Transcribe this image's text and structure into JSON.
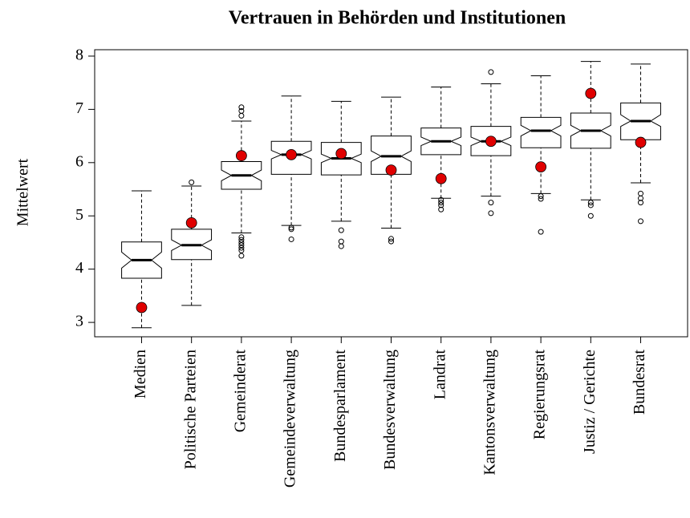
{
  "chart_data": {
    "type": "boxplot",
    "title": "Vertrauen in Behörden und Institutionen",
    "y_label": "Mittelwert",
    "categories": [
      "Medien",
      "Politische Parteien",
      "Gemeinderat",
      "Gemeindeverwaltung",
      "Bundesparlament",
      "Bundesverwaltung",
      "Landrat",
      "Kantonsverwaltung",
      "Regierungsrat",
      "Justiz / Gerichte",
      "Bundesrat"
    ],
    "boxes": [
      {
        "whisker_low": 2.9,
        "q1": 3.83,
        "median": 4.17,
        "q3": 4.51,
        "whisker_high": 5.47,
        "notch_low": 4.02,
        "notch_high": 4.32,
        "outliers": []
      },
      {
        "whisker_low": 3.32,
        "q1": 4.18,
        "median": 4.45,
        "q3": 4.75,
        "whisker_high": 5.56,
        "notch_low": 4.35,
        "notch_high": 4.55,
        "outliers": [
          5.63
        ]
      },
      {
        "whisker_low": 4.68,
        "q1": 5.5,
        "median": 5.76,
        "q3": 6.02,
        "whisker_high": 6.78,
        "notch_low": 5.66,
        "notch_high": 5.86,
        "outliers": [
          4.6,
          4.55,
          4.5,
          4.45,
          4.4,
          4.35,
          4.25,
          6.88,
          6.97,
          7.04
        ]
      },
      {
        "whisker_low": 4.82,
        "q1": 5.78,
        "median": 6.15,
        "q3": 6.4,
        "whisker_high": 7.25,
        "notch_low": 6.07,
        "notch_high": 6.23,
        "outliers": [
          4.78,
          4.75,
          4.56
        ]
      },
      {
        "whisker_low": 4.9,
        "q1": 5.77,
        "median": 6.08,
        "q3": 6.38,
        "whisker_high": 7.15,
        "notch_low": 6.0,
        "notch_high": 6.16,
        "outliers": [
          4.73,
          4.52,
          4.43
        ]
      },
      {
        "whisker_low": 4.77,
        "q1": 5.78,
        "median": 6.12,
        "q3": 6.5,
        "whisker_high": 7.23,
        "notch_low": 6.02,
        "notch_high": 6.22,
        "outliers": [
          4.57,
          4.52
        ]
      },
      {
        "whisker_low": 5.33,
        "q1": 6.15,
        "median": 6.4,
        "q3": 6.65,
        "whisker_high": 7.42,
        "notch_low": 6.32,
        "notch_high": 6.48,
        "outliers": [
          5.3,
          5.25,
          5.2,
          5.12
        ]
      },
      {
        "whisker_low": 5.37,
        "q1": 6.13,
        "median": 6.4,
        "q3": 6.68,
        "whisker_high": 7.48,
        "notch_low": 6.32,
        "notch_high": 6.48,
        "outliers": [
          7.7,
          5.25,
          5.05
        ]
      },
      {
        "whisker_low": 5.42,
        "q1": 6.28,
        "median": 6.6,
        "q3": 6.85,
        "whisker_high": 7.63,
        "notch_low": 6.5,
        "notch_high": 6.7,
        "outliers": [
          5.37,
          5.32,
          4.7
        ]
      },
      {
        "whisker_low": 5.3,
        "q1": 6.27,
        "median": 6.6,
        "q3": 6.93,
        "whisker_high": 7.9,
        "notch_low": 6.5,
        "notch_high": 6.7,
        "outliers": [
          5.25,
          5.2,
          5.0
        ]
      },
      {
        "whisker_low": 5.62,
        "q1": 6.43,
        "median": 6.78,
        "q3": 7.12,
        "whisker_high": 7.85,
        "notch_low": 6.68,
        "notch_high": 6.9,
        "outliers": [
          5.42,
          5.33,
          5.25,
          4.9
        ]
      }
    ],
    "points": {
      "color": "#e00000",
      "values": [
        3.28,
        4.87,
        6.13,
        6.15,
        6.17,
        5.86,
        5.7,
        6.4,
        5.92,
        7.3,
        6.38
      ]
    },
    "ylim": [
      2.73,
      8.12
    ],
    "yticks": [
      3,
      4,
      5,
      6,
      7,
      8
    ]
  }
}
